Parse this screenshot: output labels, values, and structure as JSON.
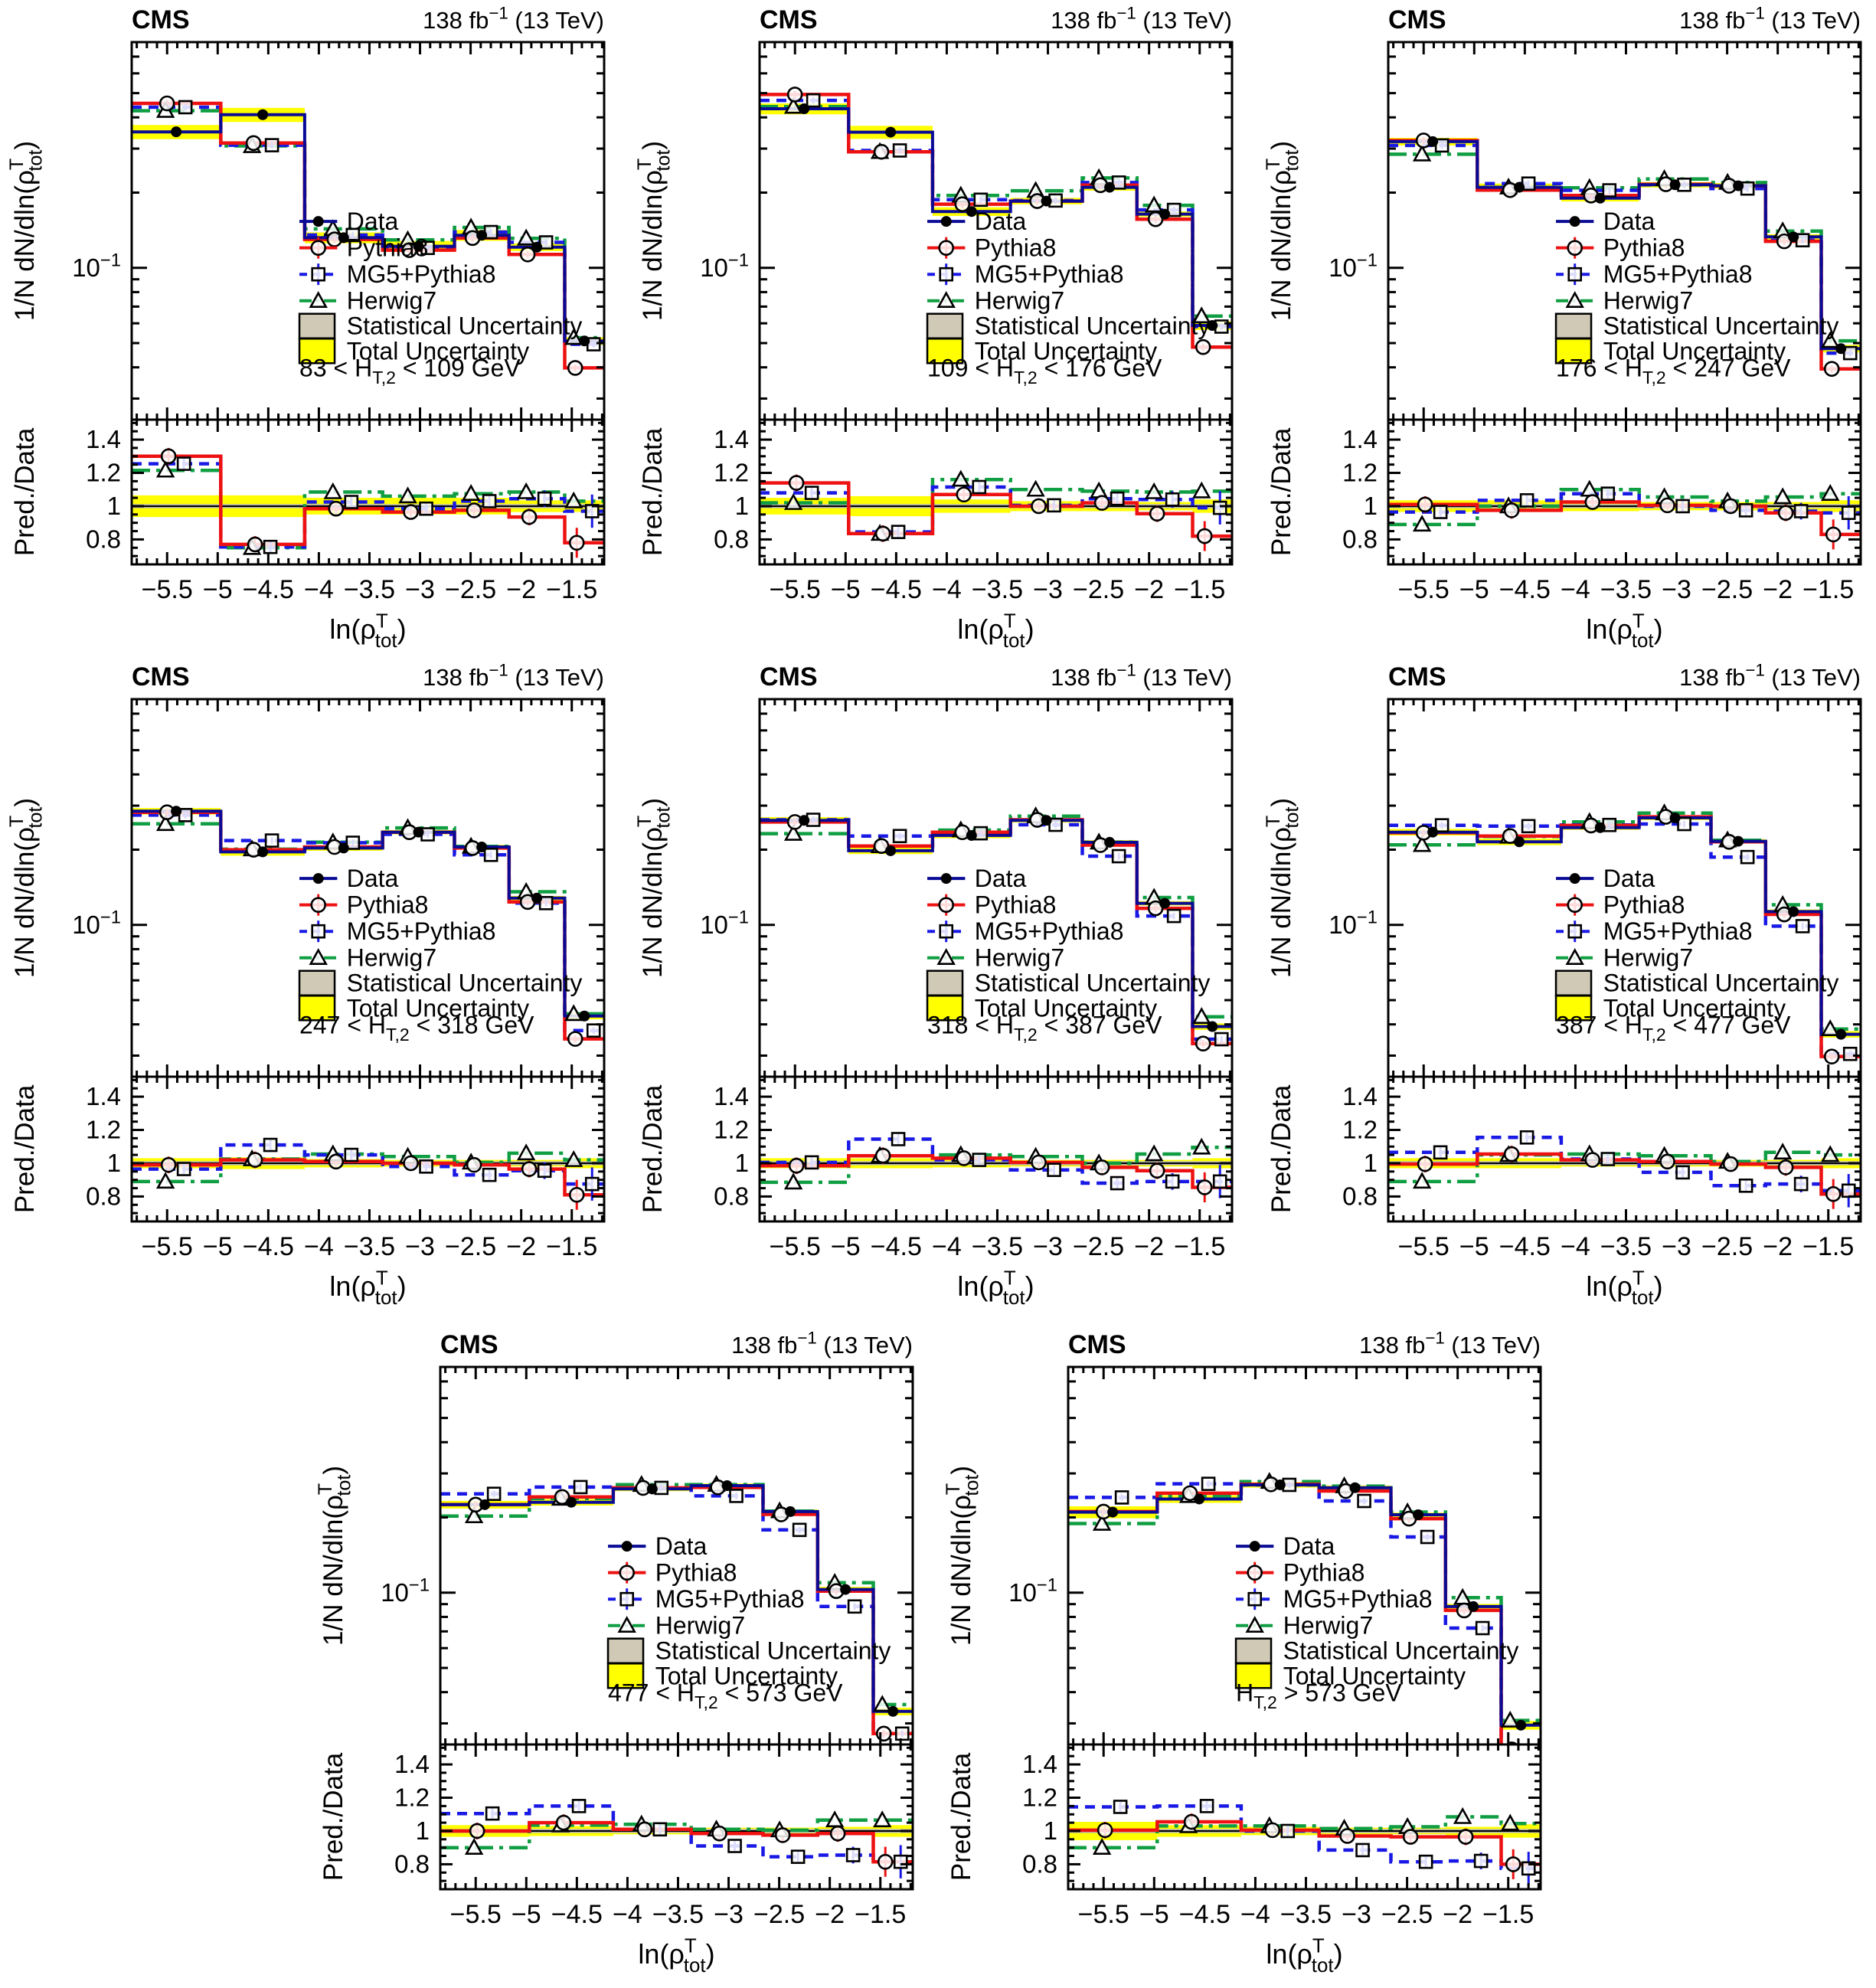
{
  "header": {
    "experiment": "CMS",
    "lumi_parts": [
      {
        "t": "138 fb"
      },
      {
        "t": "−1",
        "sup": true
      },
      {
        "t": " (13 TeV)"
      }
    ],
    "lumi_text": "138 fb−1 (13 TeV)"
  },
  "axes": {
    "x_title_parts": [
      {
        "t": "ln(ρ"
      },
      {
        "t": "T",
        "sup": true
      },
      {
        "t": "tot",
        "sub": true,
        "dx": -17
      },
      {
        "t": ")"
      }
    ],
    "x_title_text": "ln(ρ_tot^T)",
    "y_title_parts": [
      {
        "t": "1/N dN/dln(ρ"
      },
      {
        "t": "T",
        "sup": true
      },
      {
        "t": "tot",
        "sub": true,
        "dx": -17
      },
      {
        "t": ")"
      }
    ],
    "y_title_text": "1/N dN/dln(ρ_tot^T)",
    "ratio_y_title": "Pred./Data",
    "y_tick_label_parts": [
      {
        "t": "10"
      },
      {
        "t": "−1",
        "sup": true
      }
    ],
    "x_tick_values": [
      -5.5,
      -5,
      -4.5,
      -4,
      -3.5,
      -3,
      -2.5,
      -2,
      -1.5
    ],
    "x_tick_labels": [
      "−5.5",
      "−5",
      "−4.5",
      "−4",
      "−3.5",
      "−3",
      "−2.5",
      "−2",
      "−1.5"
    ],
    "ratio_tick_values": [
      0.8,
      1.0,
      1.2,
      1.4
    ],
    "ratio_tick_labels": [
      "0.8",
      "1",
      "1.2",
      "1.4"
    ],
    "x_range": [
      -5.85,
      -1.18
    ],
    "y_range_log": [
      0.0247,
      0.8
    ],
    "ratio_range": [
      0.65,
      1.52
    ]
  },
  "legend": {
    "items": [
      {
        "key": "data",
        "label": "Data"
      },
      {
        "key": "pythia8",
        "label": "Pythia8"
      },
      {
        "key": "mg5",
        "label": "MG5+Pythia8"
      },
      {
        "key": "herwig7",
        "label": "Herwig7"
      },
      {
        "key": "stat",
        "label": "Statistical Uncertainty"
      },
      {
        "key": "total",
        "label": "Total Uncertainty"
      }
    ]
  },
  "colors": {
    "data": "#0a0a96",
    "pythia8": "#ee1111",
    "mg5": "#1919e6",
    "herwig7": "#0f9e42",
    "stat_band": "#cfc9b6",
    "total_band": "#ffff00",
    "ratio_stat_band": "#b3b3b3",
    "frame": "#000000"
  },
  "chart_data": {
    "type": "bar",
    "note": "Normalized histograms (log y) with Pred./Data ratio sub-panels; 8 H_T,2 bins of ln(rho_tot^T). Model curves = data x ratio.",
    "x_edges": [
      -5.85,
      -4.97,
      -4.14,
      -3.37,
      -2.66,
      -2.12,
      -1.57,
      -1.18
    ],
    "stat_unc_frac": 0.012,
    "ratio_marker_err": {
      "pythia8": [
        0.05,
        0.05,
        0.03,
        0.03,
        0.035,
        0.05,
        0.09
      ],
      "mg5": [
        0.04,
        0.04,
        0.03,
        0.03,
        0.035,
        0.05,
        0.1
      ]
    },
    "main_marker_err_frac": {
      "data": 0.035,
      "pythia8": 0.035,
      "mg5": 0.03
    },
    "panels": [
      {
        "ht2_label_parts": [
          {
            "t": "83 < H"
          },
          {
            "t": "T,2",
            "sub": true
          },
          {
            "t": " < 109 GeV"
          }
        ],
        "ht2_label": "83 < H_T,2 < 109 GeV",
        "data": [
          0.35,
          0.41,
          0.132,
          0.122,
          0.135,
          0.121,
          0.051
        ],
        "ratio_pythia8": [
          1.3,
          0.77,
          0.985,
          0.965,
          0.975,
          0.935,
          0.78
        ],
        "ratio_mg5": [
          1.255,
          0.755,
          1.025,
          0.985,
          1.03,
          1.045,
          0.97
        ],
        "ratio_herwig7": [
          1.215,
          0.75,
          1.085,
          1.06,
          1.075,
          1.085,
          1.03
        ],
        "total_unc_frac": [
          0.065,
          0.065,
          0.05,
          0.05,
          0.05,
          0.035,
          0.035
        ]
      },
      {
        "ht2_label_parts": [
          {
            "t": "109 < H"
          },
          {
            "t": "T,2",
            "sub": true
          },
          {
            "t": " < 176 GeV"
          }
        ],
        "ht2_label": "109 < H_T,2 < 176 GeV",
        "data": [
          0.433,
          0.349,
          0.168,
          0.185,
          0.21,
          0.164,
          0.0588
        ],
        "ratio_pythia8": [
          1.14,
          0.835,
          1.07,
          1.0,
          1.02,
          0.955,
          0.82
        ],
        "ratio_mg5": [
          1.08,
          0.845,
          1.115,
          1.005,
          1.045,
          1.04,
          0.99
        ],
        "ratio_herwig7": [
          1.02,
          0.835,
          1.16,
          1.1,
          1.09,
          1.085,
          1.09
        ],
        "total_unc_frac": [
          0.05,
          0.06,
          0.04,
          0.03,
          0.03,
          0.025,
          0.04
        ]
      },
      {
        "ht2_label_parts": [
          {
            "t": "176 < H"
          },
          {
            "t": "T,2",
            "sub": true
          },
          {
            "t": " < 247 GeV"
          }
        ],
        "ht2_label": "176 < H_T,2 < 247 GeV",
        "data": [
          0.32,
          0.21,
          0.19,
          0.215,
          0.213,
          0.133,
          0.0475
        ],
        "ratio_pythia8": [
          1.01,
          0.975,
          1.025,
          1.005,
          1.0,
          0.96,
          0.83
        ],
        "ratio_mg5": [
          0.965,
          1.035,
          1.075,
          1.0,
          0.975,
          0.97,
          0.96
        ],
        "ratio_herwig7": [
          0.89,
          1.0,
          1.1,
          1.055,
          1.03,
          1.055,
          1.075
        ],
        "total_unc_frac": [
          0.035,
          0.035,
          0.03,
          0.025,
          0.025,
          0.025,
          0.035
        ]
      },
      {
        "ht2_label_parts": [
          {
            "t": "247 < H"
          },
          {
            "t": "T,2",
            "sub": true
          },
          {
            "t": " < 318 GeV"
          }
        ],
        "ht2_label": "247 < H_T,2 < 318 GeV",
        "data": [
          0.285,
          0.196,
          0.203,
          0.235,
          0.205,
          0.128,
          0.0432
        ],
        "ratio_pythia8": [
          0.99,
          1.02,
          1.01,
          1.0,
          0.99,
          0.965,
          0.81
        ],
        "ratio_mg5": [
          0.965,
          1.11,
          1.05,
          0.98,
          0.93,
          0.955,
          0.875
        ],
        "ratio_herwig7": [
          0.89,
          1.025,
          1.055,
          1.04,
          1.005,
          1.06,
          1.02
        ],
        "total_unc_frac": [
          0.03,
          0.035,
          0.025,
          0.02,
          0.02,
          0.02,
          0.03
        ]
      },
      {
        "ht2_label_parts": [
          {
            "t": "318 < H"
          },
          {
            "t": "T,2",
            "sub": true
          },
          {
            "t": " < 387 GeV"
          }
        ],
        "ht2_label": "318 < H_T,2 < 387 GeV",
        "data": [
          0.262,
          0.198,
          0.228,
          0.262,
          0.214,
          0.122,
          0.0392
        ],
        "ratio_pythia8": [
          0.985,
          1.045,
          1.03,
          1.005,
          0.975,
          0.955,
          0.855
        ],
        "ratio_mg5": [
          1.005,
          1.145,
          1.02,
          0.96,
          0.88,
          0.89,
          0.89
        ],
        "ratio_herwig7": [
          0.885,
          1.045,
          1.05,
          1.04,
          1.0,
          1.055,
          1.095
        ],
        "total_unc_frac": [
          0.03,
          0.03,
          0.025,
          0.02,
          0.02,
          0.02,
          0.03
        ]
      },
      {
        "ht2_label_parts": [
          {
            "t": "387 < H"
          },
          {
            "t": "T,2",
            "sub": true
          },
          {
            "t": " < 477 GeV"
          }
        ],
        "ht2_label": "387 < H_T,2 < 477 GeV",
        "data": [
          0.235,
          0.215,
          0.245,
          0.268,
          0.216,
          0.113,
          0.0365
        ],
        "ratio_pythia8": [
          0.995,
          1.055,
          1.02,
          1.01,
          0.995,
          0.975,
          0.815
        ],
        "ratio_mg5": [
          1.065,
          1.155,
          1.025,
          0.945,
          0.865,
          0.875,
          0.835
        ],
        "ratio_herwig7": [
          0.89,
          1.05,
          1.055,
          1.045,
          1.01,
          1.065,
          1.05
        ],
        "total_unc_frac": [
          0.03,
          0.03,
          0.02,
          0.02,
          0.02,
          0.02,
          0.03
        ]
      },
      {
        "ht2_label_parts": [
          {
            "t": "477 < H"
          },
          {
            "t": "T,2",
            "sub": true
          },
          {
            "t": " < 573 GeV"
          }
        ],
        "ht2_label": "477 < H_T,2 < 573 GeV",
        "data": [
          0.225,
          0.23,
          0.26,
          0.268,
          0.211,
          0.103,
          0.0335
        ],
        "ratio_pythia8": [
          1.0,
          1.05,
          1.01,
          0.985,
          0.975,
          0.985,
          0.815
        ],
        "ratio_mg5": [
          1.105,
          1.15,
          1.01,
          0.91,
          0.845,
          0.855,
          0.815
        ],
        "ratio_herwig7": [
          0.9,
          1.035,
          1.04,
          1.01,
          1.005,
          1.065,
          1.065
        ],
        "total_unc_frac": [
          0.035,
          0.03,
          0.02,
          0.02,
          0.02,
          0.025,
          0.035
        ]
      },
      {
        "ht2_label_parts": [
          {
            "t": "H"
          },
          {
            "t": "T,2",
            "sub": true
          },
          {
            "t": " > 573 GeV"
          }
        ],
        "ht2_label": "H_T,2 > 573 GeV",
        "data": [
          0.21,
          0.237,
          0.27,
          0.263,
          0.205,
          0.088,
          0.0295
        ],
        "ratio_pythia8": [
          1.005,
          1.055,
          1.005,
          0.97,
          0.965,
          0.965,
          0.8
        ],
        "ratio_mg5": [
          1.145,
          1.15,
          1.0,
          0.885,
          0.815,
          0.82,
          0.775
        ],
        "ratio_herwig7": [
          0.9,
          1.03,
          1.03,
          1.015,
          1.025,
          1.085,
          1.045
        ],
        "total_unc_frac": [
          0.055,
          0.035,
          0.025,
          0.02,
          0.02,
          0.025,
          0.04
        ]
      }
    ]
  }
}
